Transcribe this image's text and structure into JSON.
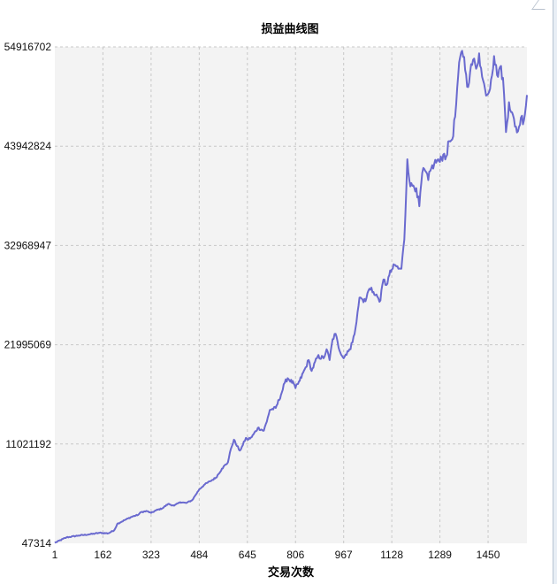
{
  "chart_data": {
    "type": "line",
    "title": "损益曲线图",
    "xlabel": "交易次数",
    "ylabel": "",
    "x_ticks": [
      "1",
      "162",
      "323",
      "484",
      "645",
      "806",
      "967",
      "1128",
      "1289",
      "1450"
    ],
    "y_ticks": [
      "47314",
      "11021192",
      "21995069",
      "32968947",
      "43942824",
      "54916702"
    ],
    "xlim": [
      1,
      1580
    ],
    "ylim": [
      47314,
      54916702
    ],
    "grid": true,
    "line_color": "#6a6acf",
    "plot_bg": "#f3f3f3",
    "series": [
      {
        "x": [
          1,
          40,
          80,
          120,
          150,
          180,
          200,
          210,
          240,
          260,
          280,
          290,
          310,
          323,
          340,
          360,
          380,
          400,
          420,
          440,
          460,
          470,
          484,
          500,
          520,
          540,
          560,
          580,
          590,
          600,
          610,
          620,
          630,
          640,
          645,
          660,
          680,
          700,
          710,
          720,
          740,
          760,
          770,
          780,
          800,
          806,
          820,
          840,
          850,
          860,
          880,
          900,
          910,
          920,
          930,
          940,
          950,
          967,
          980,
          990,
          1000,
          1010,
          1020,
          1030,
          1040,
          1050,
          1060,
          1070,
          1080,
          1090,
          1100,
          1110,
          1120,
          1128,
          1140,
          1150,
          1160,
          1170,
          1180,
          1190,
          1200,
          1210,
          1220,
          1230,
          1240,
          1250,
          1260,
          1270,
          1280,
          1289,
          1300,
          1310,
          1320,
          1330,
          1340,
          1350,
          1360,
          1370,
          1380,
          1390,
          1400,
          1410,
          1420,
          1430,
          1440,
          1450,
          1460,
          1470,
          1480,
          1490,
          1500,
          1510,
          1520,
          1530,
          1540,
          1550,
          1560,
          1570,
          1580
        ],
        "y": [
          100000,
          700000,
          900000,
          1050000,
          1200000,
          1150000,
          1500000,
          2200000,
          2700000,
          3000000,
          3200000,
          3500000,
          3600000,
          3400000,
          3700000,
          3900000,
          4400000,
          4200000,
          4600000,
          4500000,
          4800000,
          5300000,
          6000000,
          6500000,
          6900000,
          7300000,
          8300000,
          9000000,
          10500000,
          11500000,
          10800000,
          10300000,
          10900000,
          11700000,
          11500000,
          11800000,
          12800000,
          12500000,
          13500000,
          14800000,
          15000000,
          16700000,
          17800000,
          18300000,
          17700000,
          17200000,
          18000000,
          19500000,
          20300000,
          19100000,
          20700000,
          20500000,
          21500000,
          20300000,
          22600000,
          23200000,
          21700000,
          20500000,
          21300000,
          21500000,
          22900000,
          24500000,
          27200000,
          27000000,
          26800000,
          28000000,
          28300000,
          27500000,
          27300000,
          26900000,
          29200000,
          28600000,
          29700000,
          30300000,
          30800000,
          30400000,
          30400000,
          33600000,
          42500000,
          39500000,
          39600000,
          39300000,
          37300000,
          41000000,
          41200000,
          40200000,
          41500000,
          42000000,
          42400000,
          42200000,
          43000000,
          42800000,
          44500000,
          44700000,
          47200000,
          51700000,
          54300000,
          53800000,
          50500000,
          52100000,
          53500000,
          52500000,
          54200000,
          51600000,
          50200000,
          49700000,
          51300000,
          53900000,
          51800000,
          52700000,
          51500000,
          45500000,
          48800000,
          47700000,
          46100000,
          45600000,
          47100000,
          46800000,
          49600000
        ]
      }
    ]
  }
}
